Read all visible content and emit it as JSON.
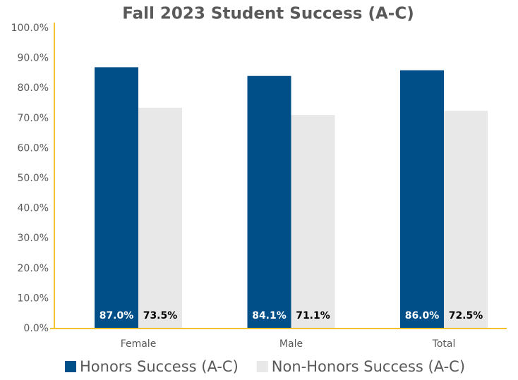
{
  "chart_data": {
    "type": "bar",
    "title": "Fall 2023 Student Success (A-C)",
    "categories": [
      "Female",
      "Male",
      "Total"
    ],
    "series": [
      {
        "name": "Honors Success (A-C)",
        "color": "#004f88",
        "label_color": "#ffffff",
        "values": [
          87.0,
          84.1,
          86.0
        ],
        "value_labels": [
          "87.0%",
          "84.1%",
          "86.0%"
        ]
      },
      {
        "name": "Non-Honors Success (A-C)",
        "color": "#e8e8e8",
        "label_color": "#000000",
        "values": [
          73.5,
          71.1,
          72.5
        ],
        "value_labels": [
          "73.5%",
          "71.1%",
          "72.5%"
        ]
      }
    ],
    "ylim": [
      0,
      100
    ],
    "yticks": [
      {
        "value": 0,
        "label": "0.0%"
      },
      {
        "value": 10,
        "label": "10.0%"
      },
      {
        "value": 20,
        "label": "20.0%"
      },
      {
        "value": 30,
        "label": "30.0%"
      },
      {
        "value": 40,
        "label": "40.0%"
      },
      {
        "value": 50,
        "label": "50.0%"
      },
      {
        "value": 60,
        "label": "60.0%"
      },
      {
        "value": 70,
        "label": "70.0%"
      },
      {
        "value": 80,
        "label": "80.0%"
      },
      {
        "value": 90,
        "label": "90.0%"
      },
      {
        "value": 100,
        "label": "100.0%"
      }
    ],
    "grid": false,
    "legend": "bottom"
  }
}
